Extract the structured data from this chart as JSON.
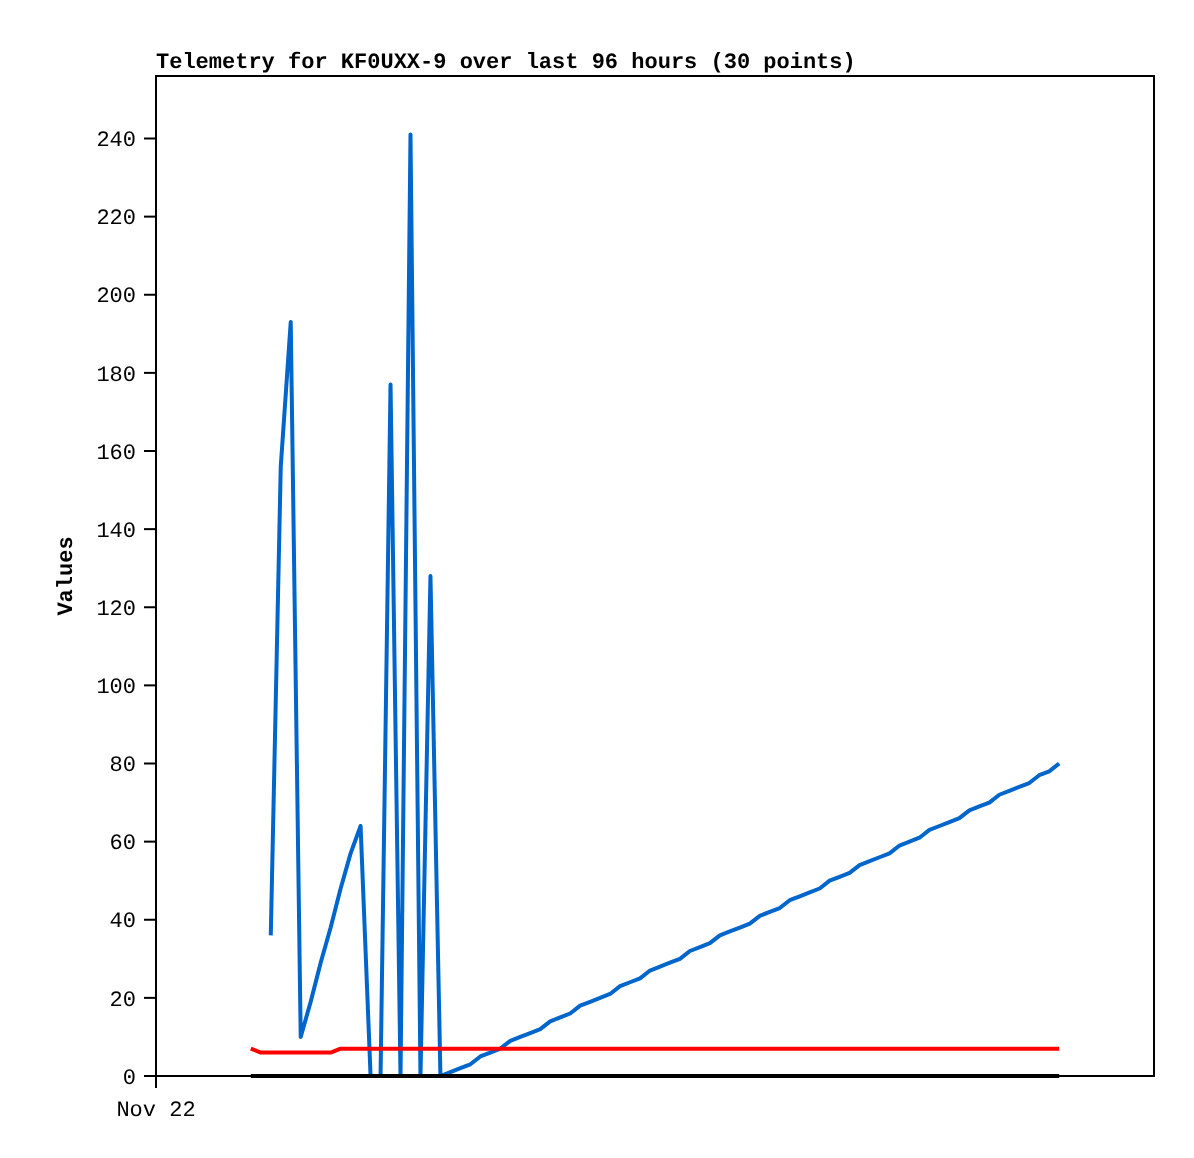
{
  "chart_data": {
    "type": "line",
    "title": "Telemetry for KF0UXX-9 over last 96 hours (30 points)",
    "ylabel": "Values",
    "categories": [
      null,
      null,
      null,
      null,
      null,
      null,
      null,
      null,
      null,
      null,
      null,
      null,
      null,
      null,
      null,
      null,
      null,
      null,
      null,
      null,
      null,
      null,
      null,
      null,
      null,
      null,
      null,
      null,
      null,
      null,
      null,
      null,
      null,
      null,
      null,
      null,
      null,
      null,
      null,
      null,
      null,
      null,
      null,
      null,
      null,
      null,
      null,
      null,
      null,
      null,
      null,
      null,
      null,
      null,
      null,
      null,
      null,
      null,
      null,
      null,
      null,
      null,
      null,
      null,
      null,
      null,
      null,
      null,
      null,
      null,
      null,
      null,
      null,
      null,
      null,
      null,
      null,
      null,
      null,
      null,
      null,
      null,
      null,
      null,
      null,
      null,
      null,
      null,
      null,
      null,
      null,
      null,
      null,
      null,
      null,
      null,
      null,
      null,
      null,
      null
    ],
    "annotations": [
      "Nov 22"
    ],
    "ylim": [
      0,
      256
    ],
    "yticks": [
      0,
      20,
      40,
      60,
      80,
      100,
      120,
      140,
      160,
      180,
      200,
      220,
      240
    ],
    "series": [
      {
        "color": "#0066cc",
        "values": [
          null,
          null,
          null,
          null,
          null,
          null,
          null,
          null,
          null,
          null,
          null,
          36,
          156,
          193,
          10,
          19,
          29,
          38,
          48,
          57,
          64,
          0,
          0,
          177,
          0,
          241,
          0,
          128,
          0,
          1,
          2,
          3,
          5,
          6,
          7,
          9,
          10,
          11,
          12,
          14,
          15,
          16,
          18,
          19,
          20,
          21,
          23,
          24,
          25,
          27,
          28,
          29,
          30,
          32,
          33,
          34,
          36,
          37,
          38,
          39,
          41,
          42,
          43,
          45,
          46,
          47,
          48,
          50,
          51,
          52,
          54,
          55,
          56,
          57,
          59,
          60,
          61,
          63,
          64,
          65,
          66,
          68,
          69,
          70,
          72,
          73,
          74,
          75,
          77,
          78,
          80,
          null,
          null,
          null,
          null,
          null,
          null,
          null,
          null,
          null
        ]
      },
      {
        "color": "#ff0000",
        "values": [
          null,
          null,
          null,
          null,
          null,
          null,
          null,
          null,
          null,
          7,
          6,
          6,
          6,
          6,
          6,
          6,
          6,
          6,
          7,
          7,
          7,
          7,
          7,
          7,
          7,
          7,
          7,
          7,
          7,
          7,
          7,
          7,
          7,
          7,
          7,
          7,
          7,
          7,
          7,
          7,
          7,
          7,
          7,
          7,
          7,
          7,
          7,
          7,
          7,
          7,
          7,
          7,
          7,
          7,
          7,
          7,
          7,
          7,
          7,
          7,
          7,
          7,
          7,
          7,
          7,
          7,
          7,
          7,
          7,
          7,
          7,
          7,
          7,
          7,
          7,
          7,
          7,
          7,
          7,
          7,
          7,
          7,
          7,
          7,
          7,
          7,
          7,
          7,
          7,
          7,
          7,
          null,
          null,
          null,
          null,
          null,
          null,
          null,
          null,
          null
        ]
      },
      {
        "color": "#000000",
        "values": [
          null,
          null,
          null,
          null,
          null,
          null,
          null,
          null,
          null,
          0,
          0,
          0,
          0,
          0,
          0,
          0,
          0,
          0,
          0,
          0,
          0,
          0,
          0,
          0,
          0,
          0,
          0,
          0,
          0,
          0,
          0,
          0,
          0,
          0,
          0,
          0,
          0,
          0,
          0,
          0,
          0,
          0,
          0,
          0,
          0,
          0,
          0,
          0,
          0,
          0,
          0,
          0,
          0,
          0,
          0,
          0,
          0,
          0,
          0,
          0,
          0,
          0,
          0,
          0,
          0,
          0,
          0,
          0,
          0,
          0,
          0,
          0,
          0,
          0,
          0,
          0,
          0,
          0,
          0,
          0,
          0,
          0,
          0,
          0,
          0,
          0,
          0,
          0,
          0,
          0,
          0,
          null,
          null,
          null,
          null,
          null,
          null,
          null,
          null,
          null
        ]
      }
    ]
  }
}
